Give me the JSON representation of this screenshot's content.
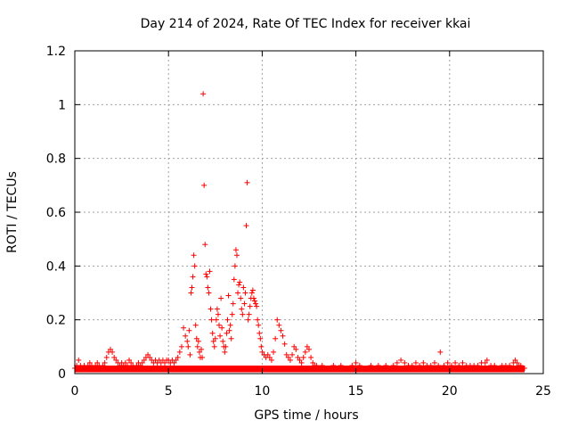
{
  "chart_data": {
    "type": "scatter",
    "title": "Day 214 of 2024, Rate Of TEC Index for receiver kkai",
    "xlabel": "GPS time / hours",
    "ylabel": "ROTI / TECUs",
    "xlim": [
      0,
      25
    ],
    "ylim": [
      0,
      1.2
    ],
    "xticks": [
      0,
      5,
      10,
      15,
      20,
      25
    ],
    "xtick_labels": [
      "0",
      "5",
      "10",
      "15",
      "20",
      "25"
    ],
    "yticks": [
      0,
      0.2,
      0.4,
      0.6,
      0.8,
      1.0,
      1.2
    ],
    "ytick_labels": [
      "0",
      "0.2",
      "0.4",
      "0.6",
      "0.8",
      "1",
      "1.2"
    ],
    "grid": true,
    "marker": "plus",
    "series": [
      {
        "name": "ROTI",
        "color": "#ff0000",
        "points": [
          [
            0.0,
            0.02
          ],
          [
            0.1,
            0.03
          ],
          [
            0.2,
            0.05
          ],
          [
            0.3,
            0.03
          ],
          [
            0.4,
            0.02
          ],
          [
            0.5,
            0.03
          ],
          [
            0.6,
            0.02
          ],
          [
            0.7,
            0.03
          ],
          [
            0.8,
            0.04
          ],
          [
            0.9,
            0.03
          ],
          [
            1.0,
            0.02
          ],
          [
            1.1,
            0.03
          ],
          [
            1.2,
            0.04
          ],
          [
            1.3,
            0.03
          ],
          [
            1.4,
            0.02
          ],
          [
            1.5,
            0.03
          ],
          [
            1.6,
            0.04
          ],
          [
            1.7,
            0.06
          ],
          [
            1.8,
            0.08
          ],
          [
            1.9,
            0.09
          ],
          [
            2.0,
            0.08
          ],
          [
            2.1,
            0.06
          ],
          [
            2.2,
            0.05
          ],
          [
            2.3,
            0.04
          ],
          [
            2.4,
            0.03
          ],
          [
            2.5,
            0.04
          ],
          [
            2.6,
            0.03
          ],
          [
            2.7,
            0.04
          ],
          [
            2.8,
            0.03
          ],
          [
            2.9,
            0.05
          ],
          [
            3.0,
            0.04
          ],
          [
            3.1,
            0.03
          ],
          [
            3.2,
            0.02
          ],
          [
            3.3,
            0.03
          ],
          [
            3.4,
            0.04
          ],
          [
            3.5,
            0.03
          ],
          [
            3.6,
            0.04
          ],
          [
            3.7,
            0.05
          ],
          [
            3.8,
            0.06
          ],
          [
            3.9,
            0.07
          ],
          [
            4.0,
            0.06
          ],
          [
            4.1,
            0.05
          ],
          [
            4.2,
            0.04
          ],
          [
            4.3,
            0.05
          ],
          [
            4.4,
            0.04
          ],
          [
            4.5,
            0.05
          ],
          [
            4.6,
            0.04
          ],
          [
            4.7,
            0.05
          ],
          [
            4.8,
            0.04
          ],
          [
            4.9,
            0.05
          ],
          [
            5.0,
            0.05
          ],
          [
            5.1,
            0.04
          ],
          [
            5.2,
            0.05
          ],
          [
            5.3,
            0.04
          ],
          [
            5.4,
            0.05
          ],
          [
            5.5,
            0.06
          ],
          [
            5.6,
            0.08
          ],
          [
            5.7,
            0.1
          ],
          [
            5.8,
            0.17
          ],
          [
            5.9,
            0.14
          ],
          [
            6.0,
            0.12
          ],
          [
            6.05,
            0.1
          ],
          [
            6.1,
            0.16
          ],
          [
            6.15,
            0.07
          ],
          [
            6.2,
            0.3
          ],
          [
            6.25,
            0.32
          ],
          [
            6.3,
            0.36
          ],
          [
            6.35,
            0.44
          ],
          [
            6.4,
            0.4
          ],
          [
            6.45,
            0.18
          ],
          [
            6.5,
            0.13
          ],
          [
            6.55,
            0.1
          ],
          [
            6.6,
            0.12
          ],
          [
            6.65,
            0.08
          ],
          [
            6.7,
            0.06
          ],
          [
            6.75,
            0.09
          ],
          [
            6.8,
            0.06
          ],
          [
            6.85,
            1.04
          ],
          [
            6.9,
            0.7
          ],
          [
            6.95,
            0.48
          ],
          [
            7.0,
            0.37
          ],
          [
            7.05,
            0.36
          ],
          [
            7.1,
            0.32
          ],
          [
            7.15,
            0.3
          ],
          [
            7.2,
            0.38
          ],
          [
            7.25,
            0.24
          ],
          [
            7.3,
            0.2
          ],
          [
            7.35,
            0.15
          ],
          [
            7.4,
            0.12
          ],
          [
            7.45,
            0.1
          ],
          [
            7.5,
            0.13
          ],
          [
            7.55,
            0.2
          ],
          [
            7.6,
            0.24
          ],
          [
            7.65,
            0.22
          ],
          [
            7.7,
            0.18
          ],
          [
            7.75,
            0.14
          ],
          [
            7.8,
            0.28
          ],
          [
            7.85,
            0.17
          ],
          [
            7.9,
            0.12
          ],
          [
            7.95,
            0.1
          ],
          [
            8.0,
            0.08
          ],
          [
            8.05,
            0.1
          ],
          [
            8.1,
            0.15
          ],
          [
            8.15,
            0.2
          ],
          [
            8.2,
            0.29
          ],
          [
            8.25,
            0.16
          ],
          [
            8.3,
            0.18
          ],
          [
            8.35,
            0.13
          ],
          [
            8.4,
            0.22
          ],
          [
            8.45,
            0.26
          ],
          [
            8.5,
            0.35
          ],
          [
            8.55,
            0.4
          ],
          [
            8.6,
            0.46
          ],
          [
            8.65,
            0.44
          ],
          [
            8.7,
            0.3
          ],
          [
            8.75,
            0.33
          ],
          [
            8.8,
            0.34
          ],
          [
            8.85,
            0.28
          ],
          [
            8.9,
            0.24
          ],
          [
            8.95,
            0.22
          ],
          [
            9.0,
            0.32
          ],
          [
            9.05,
            0.26
          ],
          [
            9.1,
            0.3
          ],
          [
            9.15,
            0.55
          ],
          [
            9.2,
            0.71
          ],
          [
            9.25,
            0.2
          ],
          [
            9.3,
            0.22
          ],
          [
            9.35,
            0.25
          ],
          [
            9.4,
            0.28
          ],
          [
            9.45,
            0.3
          ],
          [
            9.5,
            0.31
          ],
          [
            9.55,
            0.28
          ],
          [
            9.6,
            0.27
          ],
          [
            9.65,
            0.26
          ],
          [
            9.7,
            0.25
          ],
          [
            9.75,
            0.2
          ],
          [
            9.8,
            0.18
          ],
          [
            9.85,
            0.15
          ],
          [
            9.9,
            0.13
          ],
          [
            9.95,
            0.1
          ],
          [
            10.0,
            0.08
          ],
          [
            10.1,
            0.07
          ],
          [
            10.2,
            0.06
          ],
          [
            10.3,
            0.07
          ],
          [
            10.4,
            0.06
          ],
          [
            10.5,
            0.05
          ],
          [
            10.6,
            0.08
          ],
          [
            10.7,
            0.13
          ],
          [
            10.8,
            0.2
          ],
          [
            10.9,
            0.18
          ],
          [
            11.0,
            0.16
          ],
          [
            11.1,
            0.14
          ],
          [
            11.2,
            0.11
          ],
          [
            11.3,
            0.07
          ],
          [
            11.4,
            0.06
          ],
          [
            11.5,
            0.05
          ],
          [
            11.6,
            0.07
          ],
          [
            11.7,
            0.1
          ],
          [
            11.8,
            0.09
          ],
          [
            11.9,
            0.06
          ],
          [
            12.0,
            0.05
          ],
          [
            12.1,
            0.04
          ],
          [
            12.2,
            0.06
          ],
          [
            12.3,
            0.08
          ],
          [
            12.4,
            0.1
          ],
          [
            12.5,
            0.09
          ],
          [
            12.6,
            0.06
          ],
          [
            12.7,
            0.04
          ],
          [
            12.8,
            0.03
          ],
          [
            12.9,
            0.03
          ],
          [
            13.0,
            0.02
          ],
          [
            13.2,
            0.03
          ],
          [
            13.4,
            0.02
          ],
          [
            13.6,
            0.02
          ],
          [
            13.8,
            0.03
          ],
          [
            14.0,
            0.02
          ],
          [
            14.2,
            0.03
          ],
          [
            14.4,
            0.02
          ],
          [
            14.6,
            0.02
          ],
          [
            14.8,
            0.03
          ],
          [
            15.0,
            0.04
          ],
          [
            15.2,
            0.03
          ],
          [
            15.4,
            0.02
          ],
          [
            15.6,
            0.02
          ],
          [
            15.8,
            0.03
          ],
          [
            16.0,
            0.02
          ],
          [
            16.2,
            0.03
          ],
          [
            16.4,
            0.02
          ],
          [
            16.6,
            0.03
          ],
          [
            16.8,
            0.02
          ],
          [
            17.0,
            0.03
          ],
          [
            17.2,
            0.04
          ],
          [
            17.4,
            0.05
          ],
          [
            17.6,
            0.04
          ],
          [
            17.8,
            0.03
          ],
          [
            18.0,
            0.03
          ],
          [
            18.2,
            0.04
          ],
          [
            18.4,
            0.03
          ],
          [
            18.6,
            0.04
          ],
          [
            18.8,
            0.03
          ],
          [
            19.0,
            0.03
          ],
          [
            19.2,
            0.04
          ],
          [
            19.4,
            0.03
          ],
          [
            19.5,
            0.08
          ],
          [
            19.7,
            0.03
          ],
          [
            19.9,
            0.04
          ],
          [
            20.1,
            0.03
          ],
          [
            20.3,
            0.04
          ],
          [
            20.5,
            0.03
          ],
          [
            20.7,
            0.04
          ],
          [
            20.9,
            0.03
          ],
          [
            21.1,
            0.03
          ],
          [
            21.3,
            0.03
          ],
          [
            21.5,
            0.03
          ],
          [
            21.7,
            0.04
          ],
          [
            21.9,
            0.04
          ],
          [
            22.0,
            0.05
          ],
          [
            22.2,
            0.03
          ],
          [
            22.4,
            0.03
          ],
          [
            22.6,
            0.02
          ],
          [
            22.8,
            0.03
          ],
          [
            23.0,
            0.03
          ],
          [
            23.2,
            0.03
          ],
          [
            23.4,
            0.04
          ],
          [
            23.5,
            0.05
          ],
          [
            23.6,
            0.04
          ],
          [
            23.7,
            0.03
          ],
          [
            23.8,
            0.03
          ],
          [
            23.9,
            0.02
          ],
          [
            24.0,
            0.02
          ]
        ]
      }
    ]
  }
}
